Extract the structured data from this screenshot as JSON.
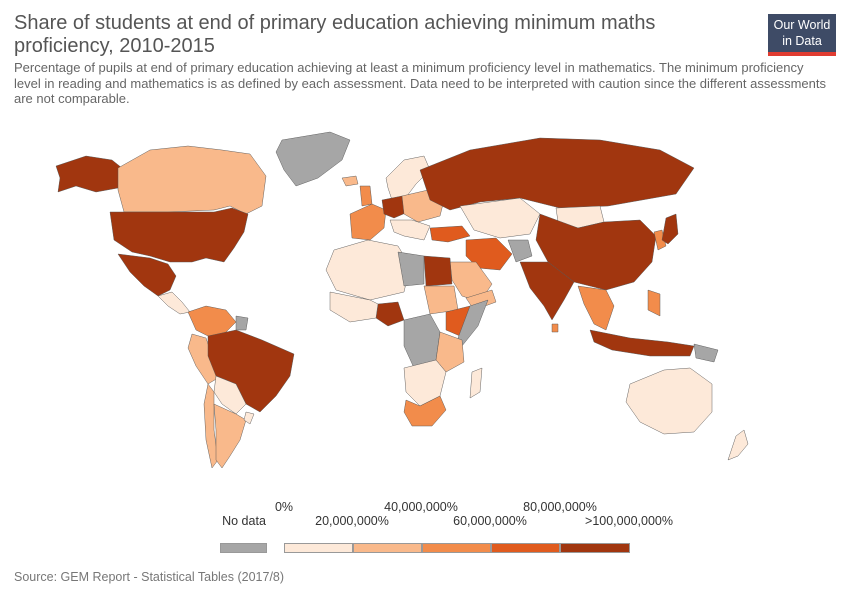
{
  "header": {
    "title": "Share of students at end of primary education achieving minimum maths proficiency, 2010-2015",
    "subtitle": "Percentage of pupils at end of primary education achieving at least a minimum proficiency level in mathematics. The minimum proficiency level in reading and mathematics is as defined by each assessment. Data need to be interpreted with caution since the different assessments are not comparable.",
    "logo_line1": "Our World",
    "logo_line2": "in Data"
  },
  "colors": {
    "no_data": "#a6a6a6",
    "bin0": "#fde9d9",
    "bin1": "#f9b98b",
    "bin2": "#f28c4b",
    "bin3": "#e05b1e",
    "bin4": "#a1360f",
    "blank": "#ffffff",
    "accent": "#e03c31",
    "logo_bg": "#3e4b66"
  },
  "legend": {
    "no_data_label": "No data",
    "tick_labels": [
      "0%",
      "20,000,000%",
      "40,000,000%",
      "60,000,000%",
      "80,000,000%",
      ">100,000,000%"
    ]
  },
  "footer": {
    "source": "Source: GEM Report - Statistical Tables (2017/8)"
  }
}
